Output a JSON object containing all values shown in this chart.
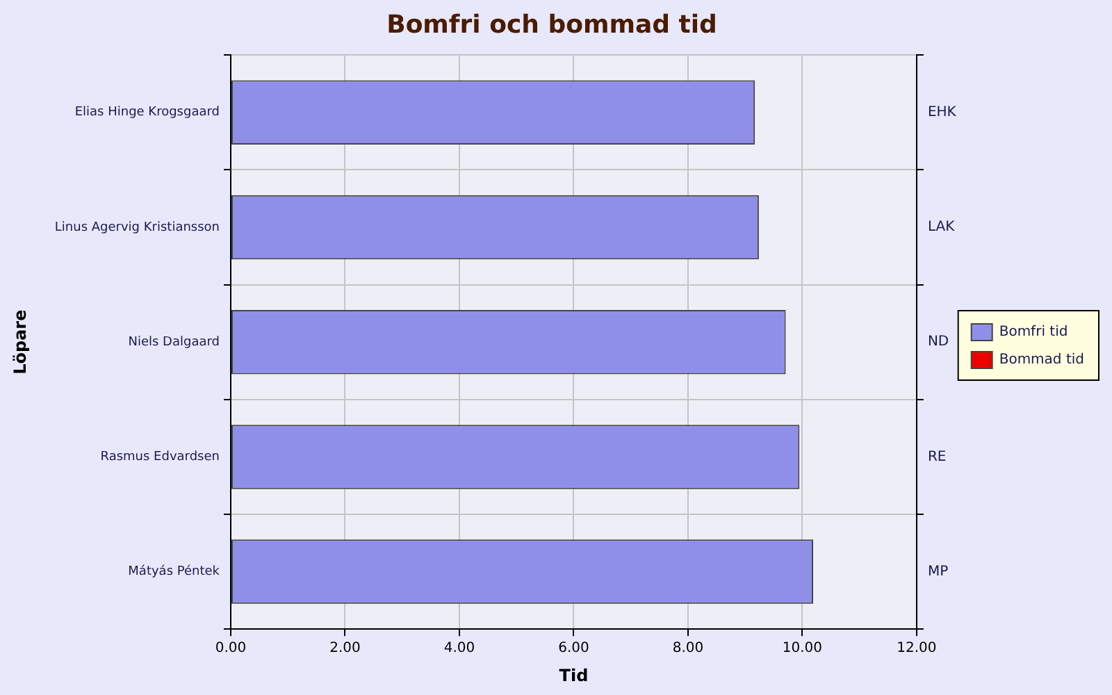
{
  "chart_data": {
    "type": "bar",
    "orientation": "horizontal",
    "stacked": true,
    "title": "Bomfri och bommad tid",
    "xlabel": "Tid",
    "ylabel": "Löpare",
    "categories": [
      "Elias Hinge Krogsgaard",
      "Linus Agervig Kristiansson",
      "Niels Dalgaard",
      "Rasmus Edvardsen",
      "Mátyás Péntek"
    ],
    "y2_categories": [
      "EHK",
      "LAK",
      "ND",
      "RE",
      "MP"
    ],
    "series": [
      {
        "name": "Bomfri tid",
        "color": "#8f8fea",
        "values": [
          9.17,
          9.24,
          9.71,
          9.95,
          10.19
        ]
      },
      {
        "name": "Bommad tid",
        "color": "#ee0000",
        "values": [
          0,
          0,
          0,
          0,
          0
        ]
      }
    ],
    "xlim": [
      0,
      12
    ],
    "xticks": [
      {
        "value": 0,
        "label": "0.00"
      },
      {
        "value": 2,
        "label": "2.00"
      },
      {
        "value": 4,
        "label": "4.00"
      },
      {
        "value": 6,
        "label": "6.00"
      },
      {
        "value": 8,
        "label": "8.00"
      },
      {
        "value": 10,
        "label": "10.00"
      },
      {
        "value": 12,
        "label": "12.00"
      }
    ],
    "grid": true,
    "legend": "right"
  }
}
